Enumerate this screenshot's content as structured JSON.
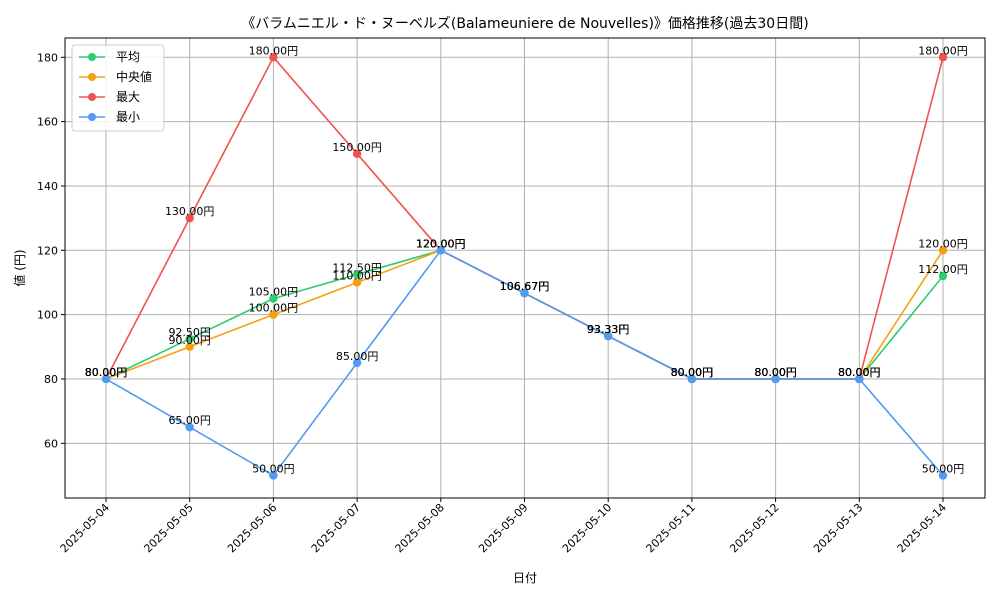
{
  "chart_data": {
    "type": "line",
    "title": "《バラムニエル・ド・ヌーベルズ(Balameuniere de Nouvelles)》価格推移(過去30日間)",
    "xlabel": "日付",
    "ylabel": "値 (円)",
    "ylim": [
      43,
      186
    ],
    "yticks": [
      60,
      80,
      100,
      120,
      140,
      160,
      180
    ],
    "grid": true,
    "legend_position": "top-left",
    "value_suffix": "円",
    "categories": [
      "2025-05-04",
      "2025-05-05",
      "2025-05-06",
      "2025-05-07",
      "2025-05-08",
      "2025-05-09",
      "2025-05-10",
      "2025-05-11",
      "2025-05-12",
      "2025-05-13",
      "2025-05-14"
    ],
    "series": [
      {
        "name": "平均",
        "color": "#2ecc71",
        "values": [
          80,
          92.5,
          105,
          112.5,
          120,
          106.67,
          93.33,
          80,
          80,
          80,
          112
        ]
      },
      {
        "name": "中央値",
        "color": "#f5a00f",
        "values": [
          80,
          90,
          100,
          110,
          120,
          106.67,
          93.33,
          80,
          80,
          80,
          120
        ]
      },
      {
        "name": "最大",
        "color": "#ef5350",
        "values": [
          80,
          130,
          180,
          150,
          120,
          106.67,
          93.33,
          80,
          80,
          80,
          180
        ]
      },
      {
        "name": "最小",
        "color": "#4f9cf5",
        "values": [
          80,
          65,
          50,
          85,
          120,
          106.67,
          93.33,
          80,
          80,
          80,
          50
        ]
      }
    ]
  }
}
